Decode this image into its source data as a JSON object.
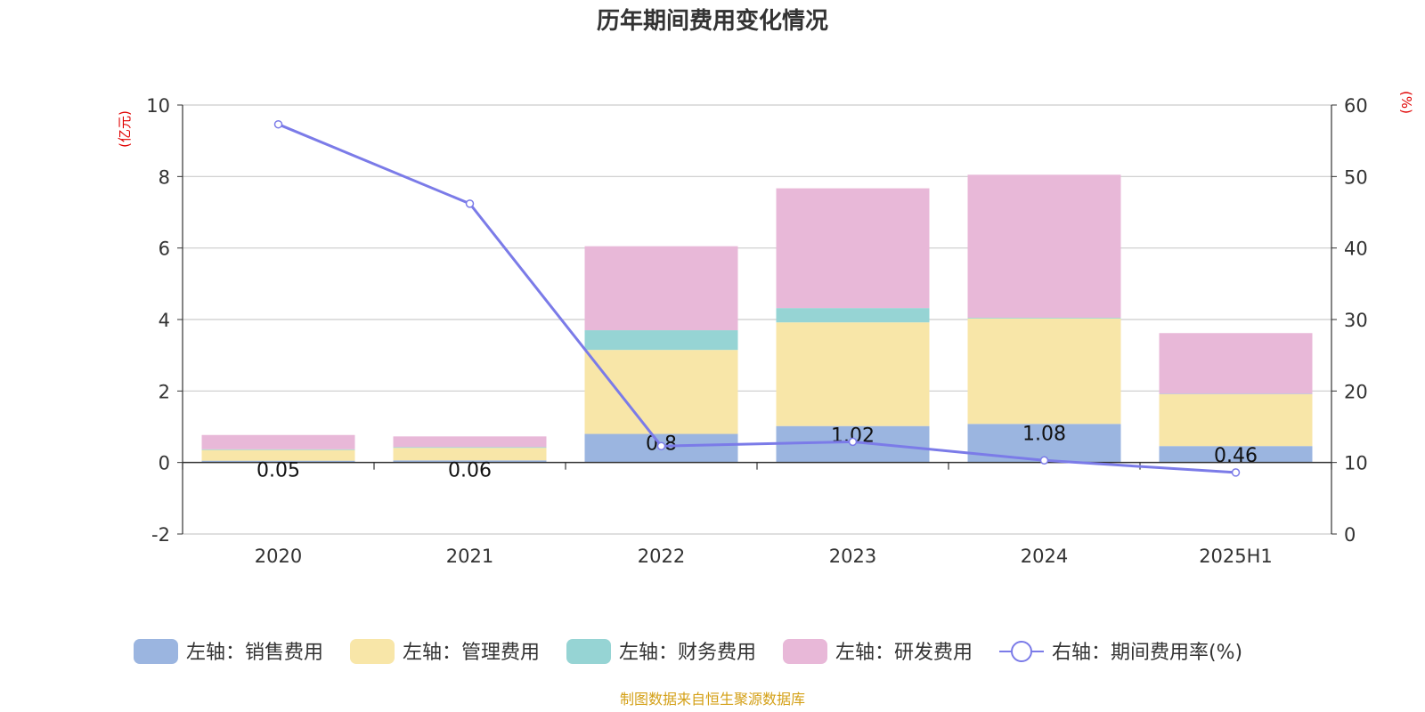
{
  "chart_data": {
    "type": "bar",
    "title": "历年期间费用变化情况",
    "categories": [
      "2020",
      "2021",
      "2022",
      "2023",
      "2024",
      "2025H1"
    ],
    "y_left": {
      "unit": "(亿元)",
      "ylim": [
        -2,
        10
      ],
      "ticks": [
        -2,
        0,
        2,
        4,
        6,
        8,
        10
      ]
    },
    "y_right": {
      "unit": "(%)",
      "ylim": [
        0,
        60
      ],
      "ticks": [
        0,
        10,
        20,
        30,
        40,
        50,
        60
      ]
    },
    "series": [
      {
        "name": "左轴：销售费用",
        "kind": "bar",
        "axis": "left",
        "color": "#9bb5e0",
        "values": [
          0.05,
          0.06,
          0.8,
          1.02,
          1.08,
          0.46
        ],
        "labels": [
          "0.05",
          "0.06",
          "0.8",
          "1.02",
          "1.08",
          "0.46"
        ]
      },
      {
        "name": "左轴：管理费用",
        "kind": "bar",
        "axis": "left",
        "color": "#f8e6a8",
        "values": [
          0.3,
          0.35,
          2.35,
          2.9,
          2.95,
          1.45
        ]
      },
      {
        "name": "左轴：财务费用",
        "kind": "bar",
        "axis": "left",
        "color": "#96d4d4",
        "values": [
          0.02,
          0.02,
          0.55,
          0.4,
          0.02,
          0.01
        ]
      },
      {
        "name": "左轴：研发费用",
        "kind": "bar",
        "axis": "left",
        "color": "#e8b8d8",
        "values": [
          0.4,
          0.3,
          2.35,
          3.35,
          4.0,
          1.7
        ]
      },
      {
        "name": "右轴：期间费用率(%)",
        "kind": "line",
        "axis": "right",
        "color": "#7b7be8",
        "values": [
          57.3,
          46.2,
          12.3,
          12.9,
          10.3,
          8.6
        ]
      }
    ],
    "legend_position": "bottom",
    "grid": true,
    "source": "制图数据来自恒生聚源数据库"
  }
}
